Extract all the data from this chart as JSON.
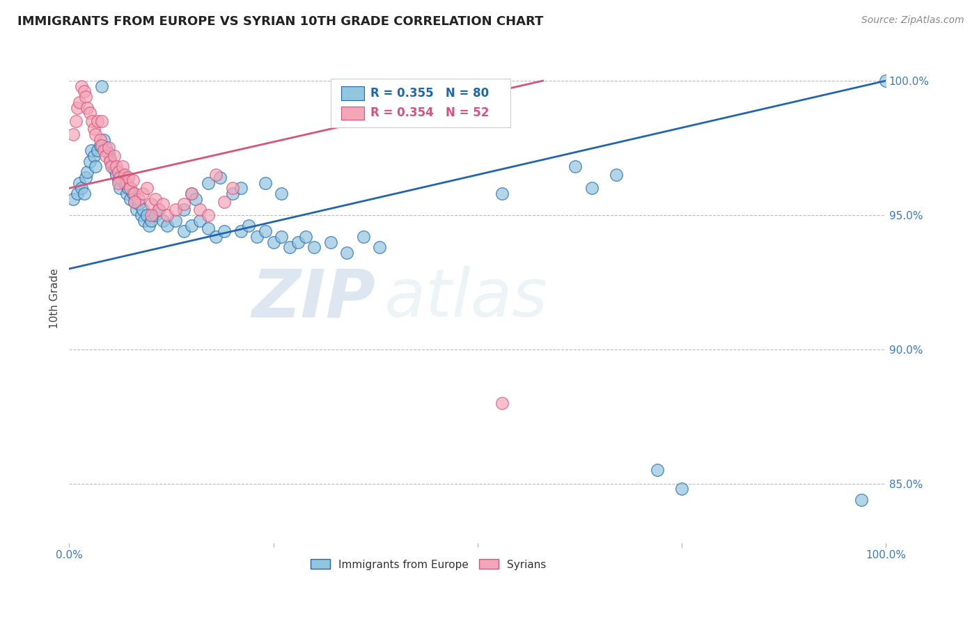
{
  "title": "IMMIGRANTS FROM EUROPE VS SYRIAN 10TH GRADE CORRELATION CHART",
  "source": "Source: ZipAtlas.com",
  "ylabel": "10th Grade",
  "ytick_labels": [
    "85.0%",
    "90.0%",
    "95.0%",
    "100.0%"
  ],
  "ytick_values": [
    0.85,
    0.9,
    0.95,
    1.0
  ],
  "xlim": [
    0.0,
    1.0
  ],
  "ylim": [
    0.828,
    1.01
  ],
  "legend_blue_label": "Immigrants from Europe",
  "legend_pink_label": "Syrians",
  "legend_r_blue": "R = 0.355",
  "legend_n_blue": "N = 80",
  "legend_r_pink": "R = 0.354",
  "legend_n_pink": "N = 52",
  "blue_color": "#92c5de",
  "pink_color": "#f4a6b8",
  "line_blue_color": "#2166ac",
  "line_pink_color": "#d6537a",
  "grid_color": "#bbbbbb",
  "background_color": "#ffffff",
  "watermark_zip": "ZIP",
  "watermark_atlas": "atlas",
  "blue_x": [
    0.005,
    0.01,
    0.012,
    0.015,
    0.018,
    0.02,
    0.022,
    0.025,
    0.027,
    0.03,
    0.032,
    0.035,
    0.038,
    0.04,
    0.042,
    0.045,
    0.048,
    0.05,
    0.052,
    0.055,
    0.058,
    0.06,
    0.062,
    0.065,
    0.068,
    0.07,
    0.072,
    0.075,
    0.078,
    0.08,
    0.082,
    0.085,
    0.088,
    0.09,
    0.092,
    0.095,
    0.098,
    0.1,
    0.105,
    0.11,
    0.115,
    0.12,
    0.13,
    0.14,
    0.15,
    0.16,
    0.17,
    0.18,
    0.19,
    0.2,
    0.21,
    0.22,
    0.23,
    0.24,
    0.25,
    0.26,
    0.27,
    0.28,
    0.29,
    0.3,
    0.32,
    0.34,
    0.36,
    0.38,
    0.15,
    0.17,
    0.185,
    0.21,
    0.24,
    0.26,
    0.14,
    0.155,
    0.53,
    0.62,
    0.64,
    0.67,
    0.72,
    0.75,
    0.97,
    1.0
  ],
  "blue_y": [
    0.956,
    0.958,
    0.962,
    0.96,
    0.958,
    0.964,
    0.966,
    0.97,
    0.974,
    0.972,
    0.968,
    0.974,
    0.976,
    0.998,
    0.978,
    0.975,
    0.973,
    0.971,
    0.969,
    0.967,
    0.965,
    0.963,
    0.96,
    0.965,
    0.962,
    0.958,
    0.96,
    0.956,
    0.958,
    0.955,
    0.952,
    0.954,
    0.95,
    0.952,
    0.948,
    0.95,
    0.946,
    0.948,
    0.95,
    0.952,
    0.948,
    0.946,
    0.948,
    0.944,
    0.946,
    0.948,
    0.945,
    0.942,
    0.944,
    0.958,
    0.944,
    0.946,
    0.942,
    0.944,
    0.94,
    0.942,
    0.938,
    0.94,
    0.942,
    0.938,
    0.94,
    0.936,
    0.942,
    0.938,
    0.958,
    0.962,
    0.964,
    0.96,
    0.962,
    0.958,
    0.952,
    0.956,
    0.958,
    0.968,
    0.96,
    0.965,
    0.855,
    0.848,
    0.844,
    1.0
  ],
  "pink_x": [
    0.005,
    0.008,
    0.01,
    0.012,
    0.015,
    0.018,
    0.02,
    0.022,
    0.025,
    0.028,
    0.03,
    0.032,
    0.035,
    0.038,
    0.04,
    0.042,
    0.045,
    0.048,
    0.05,
    0.052,
    0.055,
    0.058,
    0.06,
    0.062,
    0.065,
    0.068,
    0.07,
    0.072,
    0.075,
    0.078,
    0.08,
    0.085,
    0.09,
    0.095,
    0.1,
    0.105,
    0.11,
    0.115,
    0.12,
    0.13,
    0.14,
    0.15,
    0.16,
    0.17,
    0.18,
    0.19,
    0.2,
    0.04,
    0.06,
    0.08,
    0.1,
    0.53
  ],
  "pink_y": [
    0.98,
    0.985,
    0.99,
    0.992,
    0.998,
    0.996,
    0.994,
    0.99,
    0.988,
    0.985,
    0.982,
    0.98,
    0.985,
    0.978,
    0.976,
    0.974,
    0.972,
    0.975,
    0.97,
    0.968,
    0.972,
    0.968,
    0.966,
    0.964,
    0.968,
    0.965,
    0.962,
    0.964,
    0.96,
    0.963,
    0.958,
    0.956,
    0.958,
    0.96,
    0.954,
    0.956,
    0.952,
    0.954,
    0.95,
    0.952,
    0.954,
    0.958,
    0.952,
    0.95,
    0.965,
    0.955,
    0.96,
    0.985,
    0.962,
    0.955,
    0.95,
    0.88
  ],
  "blue_line_x": [
    0.0,
    1.0
  ],
  "blue_line_y": [
    0.93,
    1.0
  ],
  "pink_line_x": [
    0.0,
    0.58
  ],
  "pink_line_y": [
    0.96,
    1.0
  ]
}
